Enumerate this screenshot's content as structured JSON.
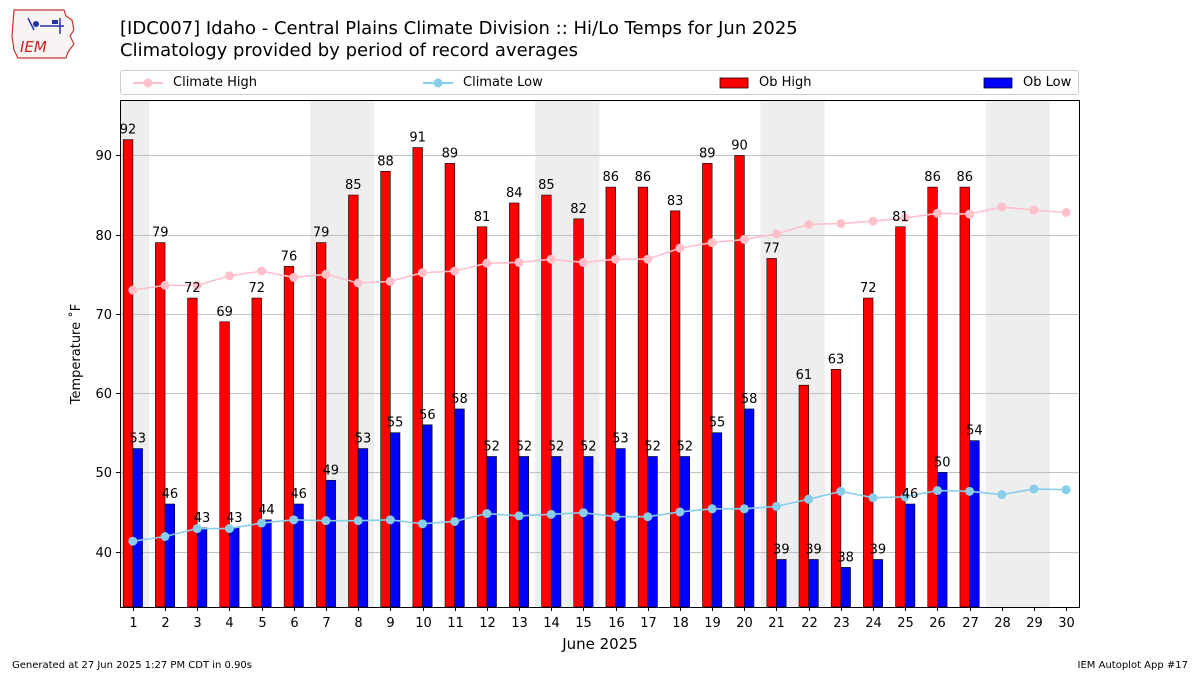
{
  "header": {
    "title": "[IDC007] Idaho - Central Plains Climate Division :: Hi/Lo Temps for Jun 2025",
    "subtitle": "Climatology provided by period of record averages"
  },
  "logo": {
    "text": "IEM"
  },
  "legend": {
    "climate_high": "Climate High",
    "climate_low": "Climate Low",
    "ob_high": "Ob High",
    "ob_low": "Ob Low"
  },
  "footer": {
    "generated": "Generated at 27 Jun 2025 1:27 PM CDT in 0.90s",
    "app": "IEM Autoplot App #17"
  },
  "colors": {
    "climate_high": "#ffc0cb",
    "climate_low": "#87ceeb",
    "ob_high": "#ff0000",
    "ob_low": "#0000ff",
    "weekend_shade": "#eeeeee",
    "grid": "#b0b0b0"
  },
  "chart_data": {
    "type": "bar",
    "xlabel": "June 2025",
    "ylabel": "Temperature ˚F",
    "ylim": [
      33,
      97
    ],
    "yticks": [
      40,
      50,
      60,
      70,
      80,
      90
    ],
    "grid": true,
    "legend_position": "top",
    "categories": [
      "1",
      "2",
      "3",
      "4",
      "5",
      "6",
      "7",
      "8",
      "9",
      "10",
      "11",
      "12",
      "13",
      "14",
      "15",
      "16",
      "17",
      "18",
      "19",
      "20",
      "21",
      "22",
      "23",
      "24",
      "25",
      "26",
      "27",
      "28",
      "29",
      "30"
    ],
    "weekend_spans": [
      [
        1,
        1
      ],
      [
        7,
        8
      ],
      [
        14,
        15
      ],
      [
        21,
        22
      ],
      [
        28,
        29
      ]
    ],
    "series": [
      {
        "name": "Ob High",
        "type": "bar",
        "values": [
          92,
          79,
          72,
          69,
          72,
          76,
          79,
          85,
          88,
          91,
          89,
          81,
          84,
          85,
          82,
          86,
          86,
          83,
          89,
          90,
          77,
          61,
          63,
          72,
          81,
          86,
          86,
          null,
          null,
          null
        ]
      },
      {
        "name": "Ob Low",
        "type": "bar",
        "values": [
          53,
          46,
          43,
          43,
          44,
          46,
          49,
          53,
          55,
          56,
          58,
          52,
          52,
          52,
          52,
          53,
          52,
          52,
          55,
          58,
          39,
          39,
          38,
          39,
          46,
          50,
          54,
          null,
          null,
          null
        ]
      },
      {
        "name": "Climate High",
        "type": "line",
        "values": [
          73.0,
          73.6,
          73.6,
          74.8,
          75.4,
          74.6,
          75.0,
          73.9,
          74.1,
          75.2,
          75.4,
          76.4,
          76.5,
          76.9,
          76.5,
          76.9,
          76.9,
          78.3,
          79.0,
          79.4,
          80.1,
          81.3,
          81.4,
          81.7,
          82.1,
          82.7,
          82.6,
          83.5,
          83.1,
          82.8
        ]
      },
      {
        "name": "Climate Low",
        "type": "line",
        "values": [
          41.3,
          41.9,
          42.9,
          42.9,
          43.6,
          44.0,
          43.9,
          43.9,
          44.0,
          43.5,
          43.8,
          44.8,
          44.5,
          44.7,
          44.9,
          44.4,
          44.4,
          45.0,
          45.4,
          45.4,
          45.7,
          46.6,
          47.6,
          46.8,
          46.9,
          47.7,
          47.6,
          47.2,
          47.9,
          47.8
        ]
      }
    ]
  }
}
